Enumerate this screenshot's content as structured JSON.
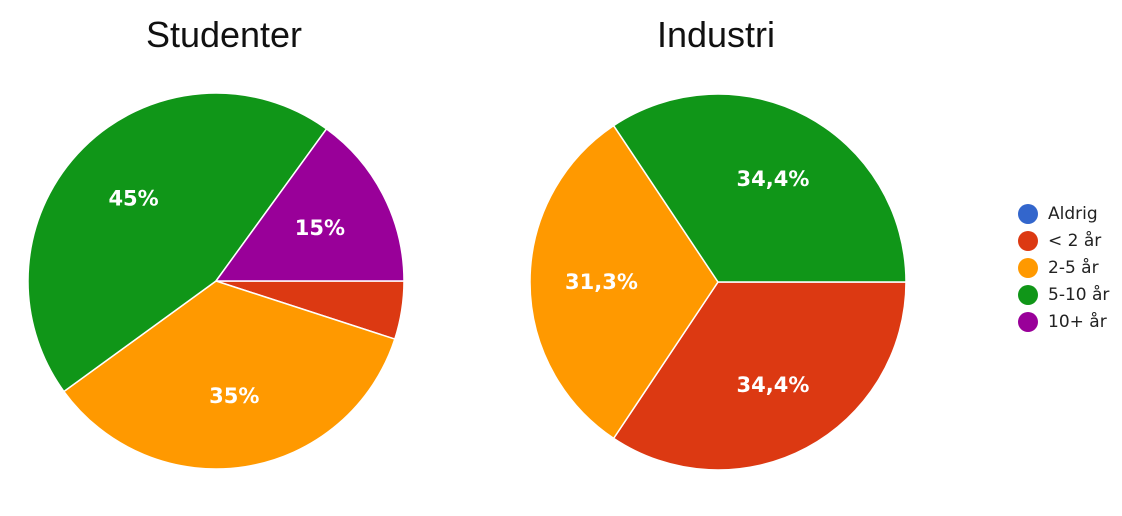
{
  "chart_data": [
    {
      "type": "pie",
      "title": "Studenter",
      "categories": [
        "Aldrig",
        "< 2 år",
        "2-5 år",
        "5-10 år",
        "10+ år"
      ],
      "values": [
        0,
        5,
        35,
        45,
        15
      ],
      "labels": [
        "",
        "",
        "35%",
        "45%",
        "15%"
      ]
    },
    {
      "type": "pie",
      "title": "Industri",
      "categories": [
        "Aldrig",
        "< 2 år",
        "2-5 år",
        "5-10 år",
        "10+ år"
      ],
      "values": [
        0,
        34.4,
        31.3,
        34.4,
        0
      ],
      "labels": [
        "",
        "34,4%",
        "31,3%",
        "34,4%",
        ""
      ]
    }
  ],
  "legend": {
    "placement": "right",
    "items": [
      {
        "label": "Aldrig",
        "color": "#3366cc"
      },
      {
        "label": "< 2 år",
        "color": "#dc3912"
      },
      {
        "label": "2-5 år",
        "color": "#ff9900"
      },
      {
        "label": "5-10 år",
        "color": "#109618"
      },
      {
        "label": "10+ år",
        "color": "#990099"
      }
    ]
  }
}
